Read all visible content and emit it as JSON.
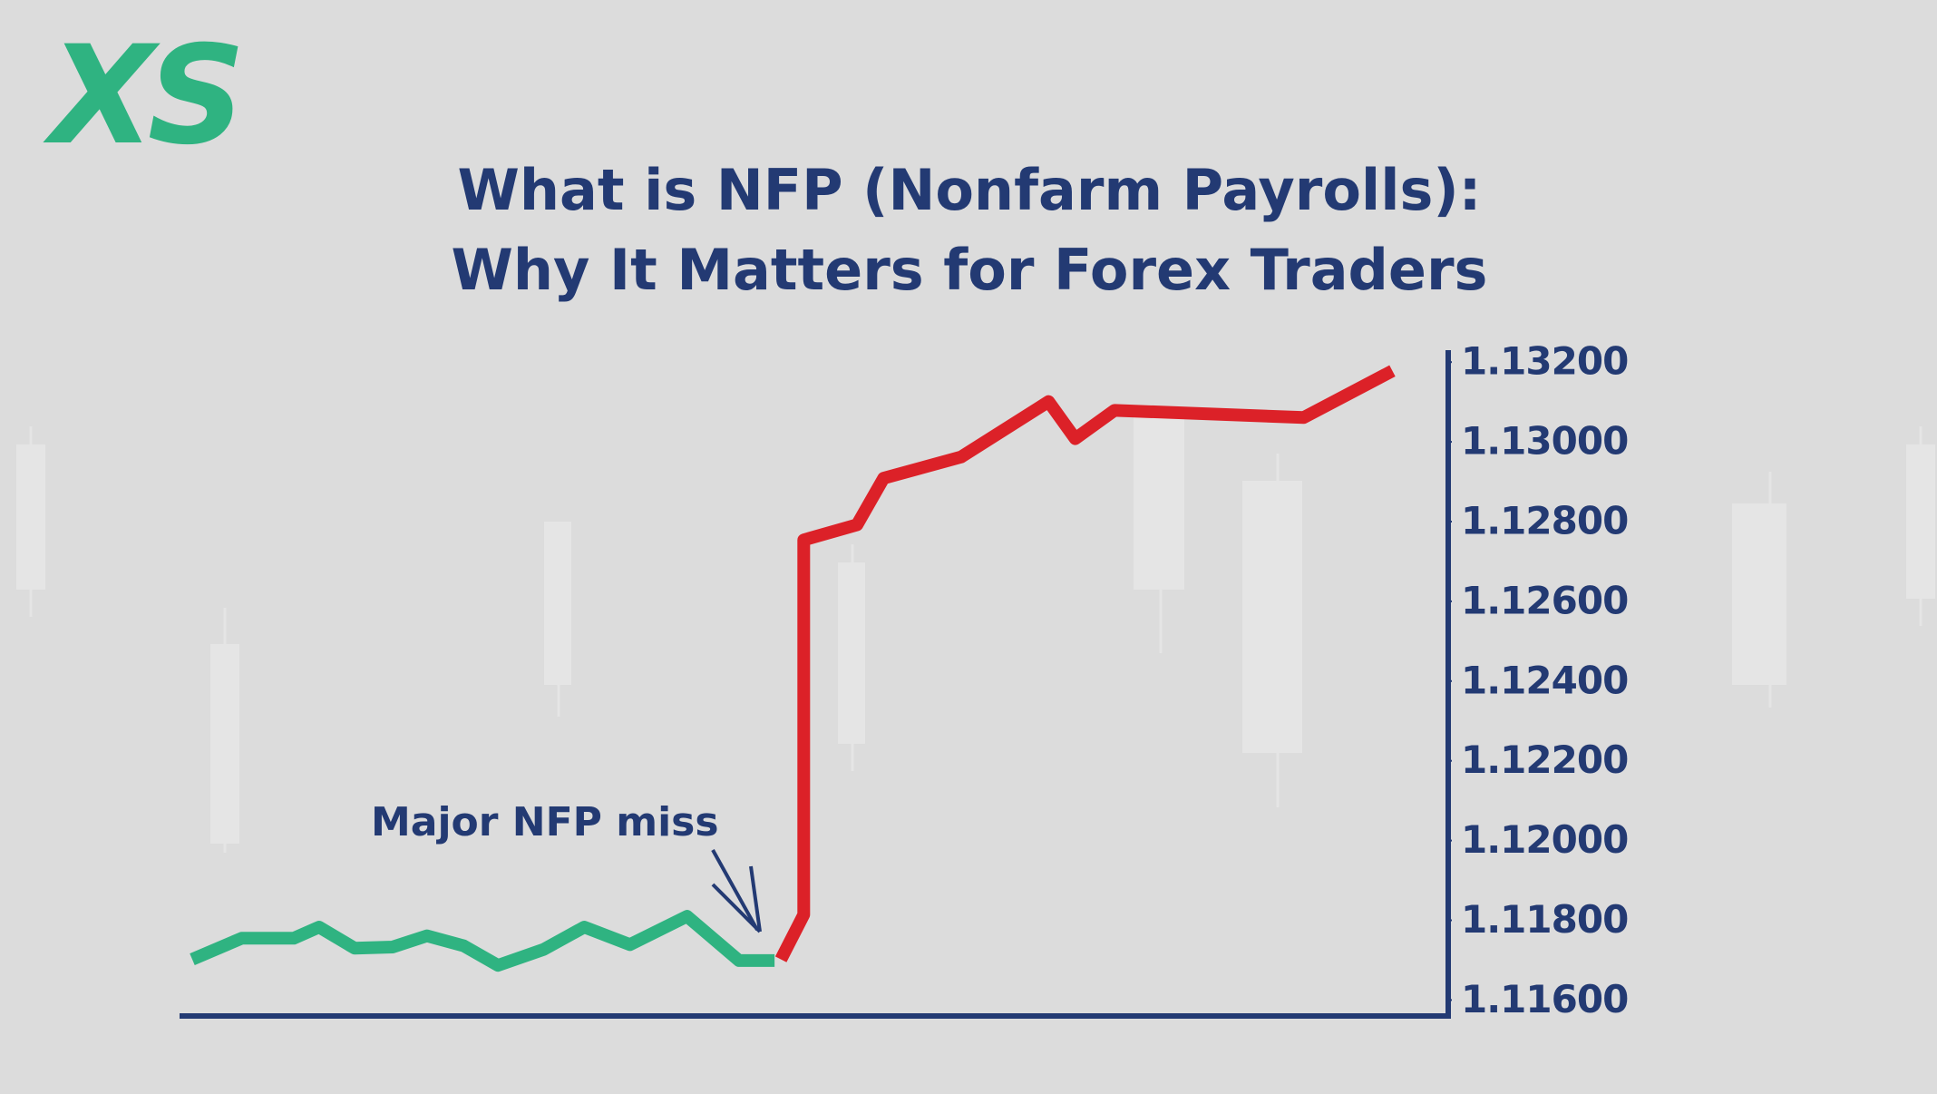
{
  "logo": "XS",
  "chart_data": {
    "type": "line",
    "title": [
      "What is NFP (Nonfarm Payrolls):",
      "Why It Matters for Forex Traders"
    ],
    "annotation": "Major NFP miss",
    "xlim": [
      0,
      100
    ],
    "ylim": [
      1.1156,
      1.1323
    ],
    "yticks": [
      {
        "value": 1.132,
        "label": "1.13200"
      },
      {
        "value": 1.13,
        "label": "1.13000"
      },
      {
        "value": 1.128,
        "label": "1.12800"
      },
      {
        "value": 1.126,
        "label": "1.12600"
      },
      {
        "value": 1.124,
        "label": "1.12400"
      },
      {
        "value": 1.122,
        "label": "1.12200"
      },
      {
        "value": 1.12,
        "label": "1.12000"
      },
      {
        "value": 1.118,
        "label": "1.11800"
      },
      {
        "value": 1.116,
        "label": "1.11600"
      }
    ],
    "axis_color": "#233a73",
    "series": [
      {
        "color": "#2fb381",
        "x": [
          1.0,
          4.9,
          9.0,
          11.0,
          13.8,
          16.8,
          19.5,
          22.4,
          25.1,
          28.7,
          31.9,
          35.5,
          40.0,
          44.1,
          46.9
        ],
        "values": [
          1.11702,
          1.11755,
          1.11755,
          1.11783,
          1.1173,
          1.11733,
          1.11761,
          1.11736,
          1.11687,
          1.11727,
          1.11783,
          1.11739,
          1.1181,
          1.11699,
          1.11699
        ]
      },
      {
        "color": "#dc2128",
        "x": [
          47.4,
          49.2,
          49.2,
          53.4,
          55.5,
          61.6,
          68.5,
          70.6,
          73.7,
          88.6,
          95.6
        ],
        "values": [
          1.11702,
          1.11814,
          1.12754,
          1.12792,
          1.12909,
          1.12962,
          1.13101,
          1.13008,
          1.13079,
          1.13061,
          1.13178
        ]
      }
    ]
  }
}
